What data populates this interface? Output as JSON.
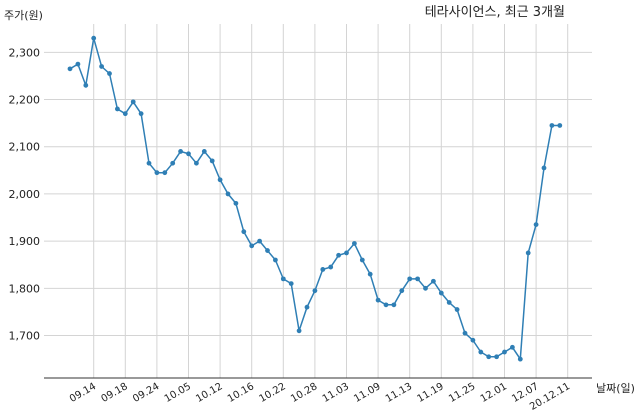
{
  "chart_data": {
    "type": "line",
    "title": "테라사이언스, 최근 3개월",
    "ylabel": "주가(원)",
    "xlabel": "날짜(일)",
    "ylim": [
      1610,
      2360
    ],
    "yticks": [
      1700,
      1800,
      1900,
      2000,
      2100,
      2200,
      2300
    ],
    "ytick_labels": [
      "1,700",
      "1,800",
      "1,900",
      "2,000",
      "2,100",
      "2,200",
      "2,300"
    ],
    "xtick_labels": [
      {
        "label": "09.14",
        "index": 3
      },
      {
        "label": "09.18",
        "index": 7
      },
      {
        "label": "09.24",
        "index": 11
      },
      {
        "label": "10.05",
        "index": 15
      },
      {
        "label": "10.12",
        "index": 19
      },
      {
        "label": "10.16",
        "index": 23
      },
      {
        "label": "10.22",
        "index": 27
      },
      {
        "label": "10.28",
        "index": 31
      },
      {
        "label": "11.03",
        "index": 35
      },
      {
        "label": "11.09",
        "index": 39
      },
      {
        "label": "11.13",
        "index": 43
      },
      {
        "label": "11.19",
        "index": 47
      },
      {
        "label": "11.25",
        "index": 51
      },
      {
        "label": "12.01",
        "index": 55
      },
      {
        "label": "12.07",
        "index": 59
      },
      {
        "label": "20.12.11",
        "index": 63
      }
    ],
    "grid": true,
    "series_color": "#2f7fb5",
    "values": [
      2265,
      2275,
      2230,
      2330,
      2270,
      2255,
      2180,
      2170,
      2195,
      2170,
      2065,
      2045,
      2045,
      2065,
      2090,
      2085,
      2065,
      2090,
      2070,
      2030,
      2000,
      1980,
      1920,
      1890,
      1900,
      1880,
      1860,
      1820,
      1810,
      1710,
      1760,
      1795,
      1840,
      1845,
      1870,
      1875,
      1895,
      1860,
      1830,
      1775,
      1765,
      1765,
      1795,
      1820,
      1820,
      1800,
      1815,
      1790,
      1770,
      1755,
      1705,
      1690,
      1665,
      1655,
      1655,
      1665,
      1675,
      1650,
      1875,
      1935,
      2055,
      2145,
      2145
    ]
  }
}
